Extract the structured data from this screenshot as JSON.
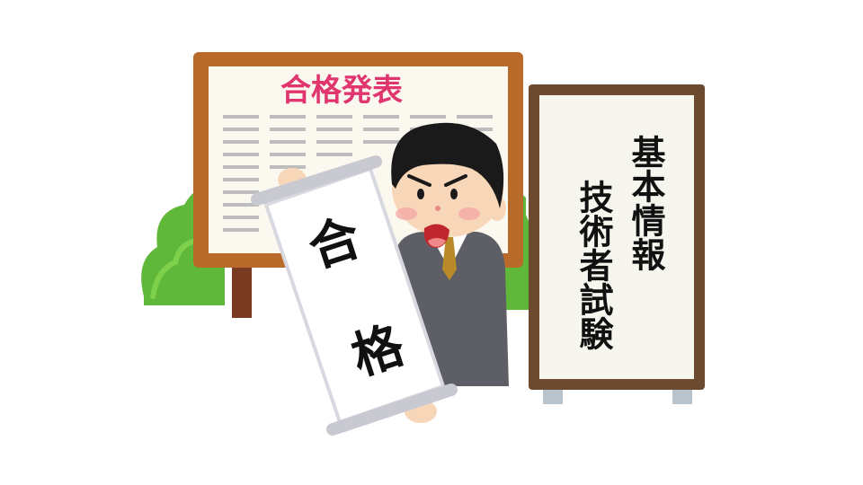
{
  "board": {
    "title": "合格発表"
  },
  "scroll": {
    "line1": "合",
    "line2": "格"
  },
  "sign": {
    "column1": "基本情報",
    "column2": "技術者試験"
  },
  "colors": {
    "board_frame": "#b86a2a",
    "board_title": "#e0356f",
    "bush": "#5fb83a",
    "suit": "#5e5f66",
    "sign_frame": "#6b4a30"
  }
}
